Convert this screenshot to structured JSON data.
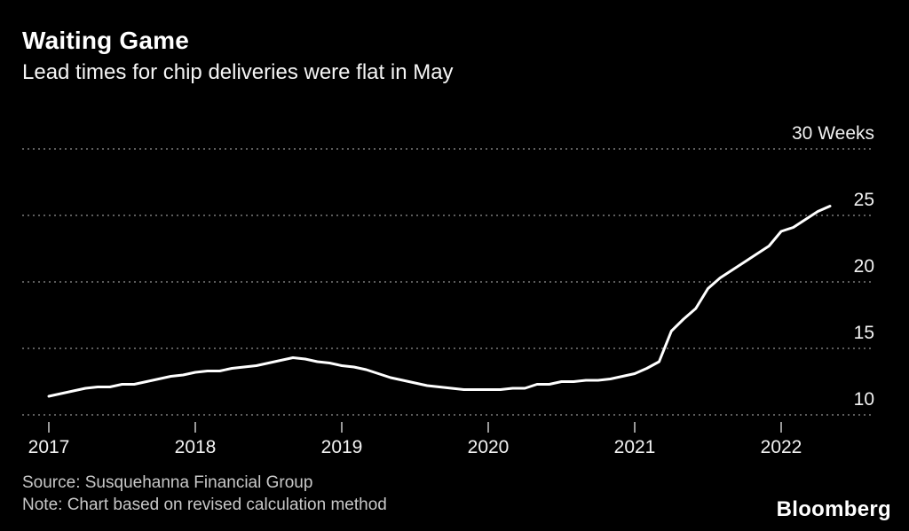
{
  "header": {
    "title": "Waiting Game",
    "subtitle": "Lead times for chip deliveries were flat in May"
  },
  "chart_data": {
    "type": "line",
    "title": "Waiting Game",
    "subtitle": "Lead times for chip deliveries were flat in May",
    "unit": "Weeks",
    "x_start_year": 2017,
    "x_step_months": 1,
    "x_end_label": "May 2022",
    "x_ticks": [
      2017,
      2018,
      2019,
      2020,
      2021,
      2022
    ],
    "y_ticks": [
      {
        "value": 10,
        "label": "10"
      },
      {
        "value": 15,
        "label": "15"
      },
      {
        "value": 20,
        "label": "20"
      },
      {
        "value": 25,
        "label": "25"
      },
      {
        "value": 30,
        "label": "30 Weeks"
      }
    ],
    "ylim": [
      10,
      30
    ],
    "grid": "dotted-horizontal",
    "line_color": "#ffffff",
    "background": "#000000",
    "series": [
      {
        "name": "Chip delivery lead time (weeks)",
        "values": [
          11.4,
          11.6,
          11.8,
          12.0,
          12.1,
          12.1,
          12.3,
          12.3,
          12.5,
          12.7,
          12.9,
          13.0,
          13.2,
          13.3,
          13.3,
          13.5,
          13.6,
          13.7,
          13.9,
          14.1,
          14.3,
          14.2,
          14.0,
          13.9,
          13.7,
          13.6,
          13.4,
          13.1,
          12.8,
          12.6,
          12.4,
          12.2,
          12.1,
          12.0,
          11.9,
          11.9,
          11.9,
          11.9,
          12.0,
          12.0,
          12.3,
          12.3,
          12.5,
          12.5,
          12.6,
          12.6,
          12.7,
          12.9,
          13.1,
          13.5,
          14.0,
          16.3,
          17.2,
          18.0,
          19.5,
          20.3,
          20.9,
          21.5,
          22.1,
          22.7,
          23.8,
          24.1,
          24.7,
          25.3,
          25.7
        ]
      }
    ]
  },
  "footer": {
    "source": "Source: Susquehanna Financial Group",
    "note": "Note: Chart based on revised calculation method"
  },
  "branding": {
    "logo": "Bloomberg"
  }
}
